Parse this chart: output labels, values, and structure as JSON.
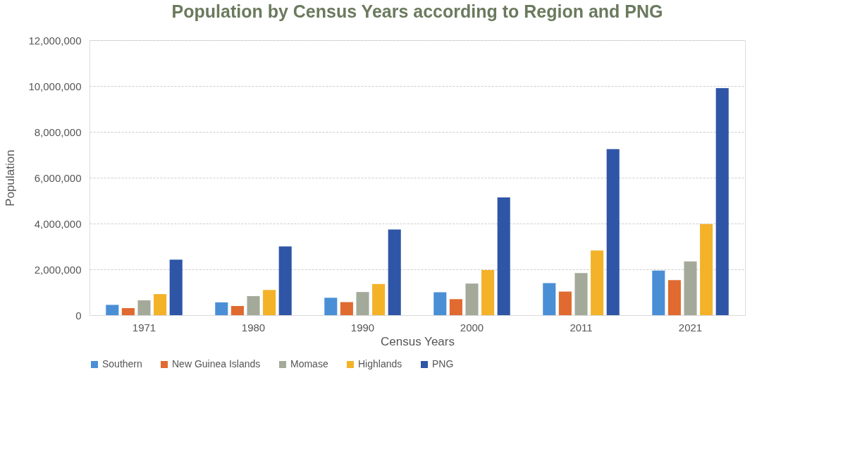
{
  "chart_data": {
    "type": "bar",
    "title": "Population by Census Years according to Region and PNG",
    "xlabel": "Census Years",
    "ylabel": "Population",
    "categories": [
      "1971",
      "1980",
      "1990",
      "2000",
      "2011",
      "2021"
    ],
    "series": [
      {
        "name": "Southern",
        "color": "#4a8fd6",
        "values": [
          450000,
          560000,
          760000,
          1000000,
          1400000,
          1950000
        ]
      },
      {
        "name": "New Guinea Islands",
        "color": "#e06a30",
        "values": [
          310000,
          400000,
          570000,
          700000,
          1030000,
          1530000
        ]
      },
      {
        "name": "Momase",
        "color": "#a4aa9a",
        "values": [
          650000,
          830000,
          1010000,
          1380000,
          1840000,
          2350000
        ]
      },
      {
        "name": "Highlands",
        "color": "#f4b228",
        "values": [
          920000,
          1100000,
          1360000,
          1970000,
          2820000,
          3980000
        ]
      },
      {
        "name": "PNG",
        "color": "#2f55a6",
        "values": [
          2420000,
          3000000,
          3740000,
          5140000,
          7250000,
          9910000
        ]
      }
    ],
    "ylim": [
      0,
      12000000
    ],
    "yticks": [
      0,
      {
        "value": 2000000,
        "label": "2,000,000"
      },
      {
        "value": 4000000,
        "label": "4,000,000"
      },
      {
        "value": 6000000,
        "label": "6,000,000"
      },
      {
        "value": 8000000,
        "label": "8,000,000"
      },
      {
        "value": 10000000,
        "label": "10,000,000"
      },
      {
        "value": 12000000,
        "label": "12,000,000"
      }
    ],
    "grid": "y",
    "legend": "bottom"
  }
}
